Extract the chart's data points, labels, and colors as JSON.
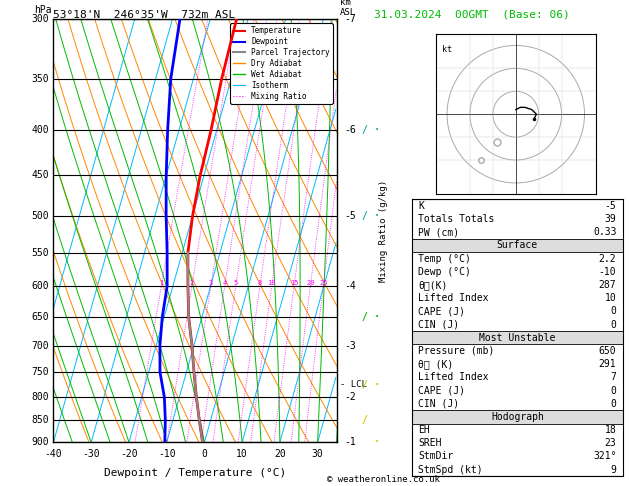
{
  "title_left": "53°18'N  246°35'W  732m ASL",
  "title_right": "31.03.2024  00GMT  (Base: 06)",
  "date_color": "#00bb00",
  "xlabel": "Dewpoint / Temperature (°C)",
  "ylabel_left": "hPa",
  "pressure_levels": [
    300,
    350,
    400,
    450,
    500,
    550,
    600,
    650,
    700,
    750,
    800,
    850,
    900
  ],
  "temp_x": [
    -23.0,
    -22.5,
    -21.5,
    -21.0,
    -20.0,
    -18.5,
    -16.0,
    -13.5,
    -10.5,
    -8.0,
    -5.5,
    -3.0,
    -0.5
  ],
  "temp_p": [
    300,
    350,
    400,
    450,
    500,
    550,
    600,
    650,
    700,
    750,
    800,
    850,
    900
  ],
  "dewp_x": [
    -38.0,
    -36.0,
    -33.0,
    -30.0,
    -27.0,
    -24.0,
    -21.5,
    -20.5,
    -19.0,
    -17.0,
    -14.0,
    -12.0,
    -10.5
  ],
  "dewp_p": [
    300,
    350,
    400,
    450,
    500,
    550,
    600,
    650,
    700,
    750,
    800,
    850,
    900
  ],
  "parcel_x": [
    -0.5,
    -3.0,
    -5.5,
    -8.0,
    -10.5,
    -13.5,
    -16.0,
    -18.5
  ],
  "parcel_p": [
    900,
    850,
    800,
    750,
    700,
    650,
    600,
    550
  ],
  "temp_color": "#ff0000",
  "dewp_color": "#0000ff",
  "parcel_color": "#888888",
  "isotherm_color": "#00bbff",
  "dry_adiabat_color": "#ff8800",
  "wet_adiabat_color": "#00bb00",
  "mixing_ratio_color": "#ff00ff",
  "xmin": -40,
  "xmax": 35,
  "pmin": 300,
  "pmax": 900,
  "skew_factor": 0.42,
  "mixing_ratio_lines": [
    1,
    2,
    3,
    4,
    5,
    8,
    10,
    15,
    20,
    25
  ],
  "lcl_pressure": 775,
  "info_box": {
    "K": "-5",
    "Totals Totals": "39",
    "PW (cm)": "0.33",
    "Temp (°C)": "2.2",
    "Dewp (°C)": "-10",
    "theta_eK": "287",
    "Lifted Index": "10",
    "CAPE (J)": "0",
    "CIN (J)": "0",
    "Pressure (mb)": "650",
    "theta_e2K": "291",
    "Lifted Index2": "7",
    "CAPE2 (J)": "0",
    "CIN2 (J)": "0",
    "EH": "18",
    "SREH": "23",
    "StmDir": "321°",
    "StmSpd (kt)": "9"
  },
  "copyright": "© weatheronline.co.uk",
  "bg_color": "#ffffff",
  "wind_barb_color": "#00aaaa",
  "wind_barb_yellow": "#cccc00",
  "wind_barbs": [
    {
      "p": 400,
      "color": "#00aaaa"
    },
    {
      "p": 500,
      "color": "#00aaaa"
    },
    {
      "p": 650,
      "color": "#00aaaa"
    },
    {
      "p": 700,
      "color": "#00bb00"
    },
    {
      "p": 800,
      "color": "#cccc00"
    }
  ]
}
